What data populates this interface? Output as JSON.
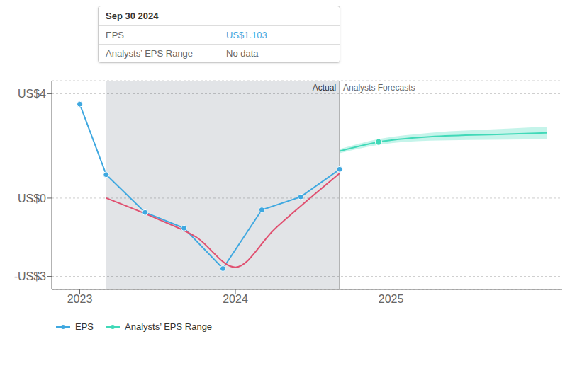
{
  "chart_data": {
    "type": "line",
    "xlim": [
      2022.82,
      2026.1
    ],
    "xticks": [
      2023,
      2024,
      2025
    ],
    "ylim": [
      -3.5,
      4.5
    ],
    "yticks": [
      {
        "value": 4,
        "label": "US$4"
      },
      {
        "value": 0,
        "label": "US$0"
      },
      {
        "value": -3,
        "label": "-US$3"
      }
    ],
    "grid": true,
    "highlight": {
      "x": [
        2023.17,
        2024.67
      ],
      "color": "#132438"
    },
    "divider_x": 2024.67,
    "annotations": [
      "Actual",
      "Analysts Forecasts"
    ],
    "tooltip": {
      "title": "Sep 30 2024",
      "rows": [
        [
          "EPS",
          "US$1.103"
        ],
        [
          "Analysts’ EPS Range",
          "No data"
        ]
      ]
    },
    "series": [
      {
        "name": "EPS",
        "color": "#3fa8e0",
        "marker": "circle",
        "line_style": "solid",
        "x": [
          2023.0,
          2023.17,
          2023.42,
          2023.67,
          2023.92,
          2024.17,
          2024.42,
          2024.67
        ],
        "values": [
          3.6,
          0.9,
          -0.55,
          -1.15,
          -2.7,
          -0.45,
          0.05,
          1.103
        ]
      },
      {
        "color": "#e05070",
        "marker": "none",
        "line_style": "smooth",
        "x": [
          2023.17,
          2023.5,
          2023.75,
          2024.0,
          2024.25,
          2024.5,
          2024.67
        ],
        "values": [
          0.0,
          -0.8,
          -1.5,
          -2.65,
          -1.2,
          0.1,
          0.95
        ]
      },
      {
        "name": "Analysts’ EPS Range",
        "color": "#40d9b8",
        "marker": "none",
        "line_style": "smooth",
        "x": [
          2024.67,
          2024.92,
          2025.25,
          2025.75,
          2026.0
        ],
        "values": [
          1.8,
          2.15,
          2.35,
          2.45,
          2.5
        ],
        "low": [
          1.72,
          2.04,
          2.2004,
          2.2404,
          2.2604
        ],
        "high": [
          1.88,
          2.26,
          2.4996,
          2.6596,
          2.7396
        ],
        "dot": {
          "x": 2024.92,
          "y": 2.15
        }
      }
    ]
  }
}
